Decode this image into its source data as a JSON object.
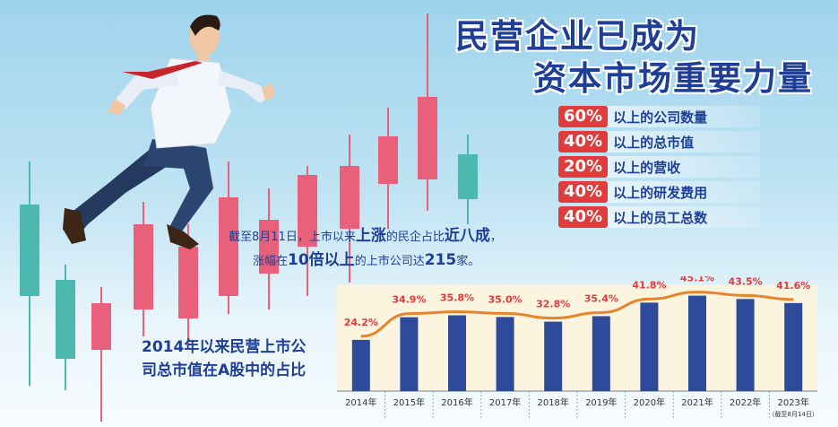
{
  "headline": {
    "line1": "民营企业已成为",
    "line2": "资本市场重要力量"
  },
  "stats": [
    {
      "percent": "60%",
      "label": "以上的公司数量"
    },
    {
      "percent": "40%",
      "label": "以上的总市值"
    },
    {
      "percent": "20%",
      "label": "以上的营收"
    },
    {
      "percent": "40%",
      "label": "以上的研发费用"
    },
    {
      "percent": "40%",
      "label": "以上的员工总数"
    }
  ],
  "note": {
    "p1a": "截至8月11日，上市以来",
    "p1b": "上涨",
    "p1c": "的民企占比",
    "p1d": "近八成",
    "p1e": "，",
    "p2a": "涨幅在",
    "p2b": "10倍以上",
    "p2c": "的上市公司达",
    "p2d": "215",
    "p2e": "家。"
  },
  "colors": {
    "bar": "#2e4a9a",
    "line": "#e8842b",
    "label": "#e23b3b",
    "candle_red": "#e9607a",
    "candle_teal": "#4cb8b0"
  },
  "chart_data": {
    "type": "bar",
    "caption_line1": "2014年以来民营上市公",
    "caption_line2": "司总市值在A股中的占比",
    "categories": [
      "2014年",
      "2015年",
      "2016年",
      "2017年",
      "2018年",
      "2019年",
      "2020年",
      "2021年",
      "2022年",
      "2023年"
    ],
    "category_note": "（截至8月14日）",
    "values": [
      24.2,
      34.9,
      35.8,
      35.0,
      32.8,
      35.4,
      41.8,
      45.1,
      43.5,
      41.6
    ],
    "value_labels": [
      "24.2%",
      "34.9%",
      "35.8%",
      "35.0%",
      "32.8%",
      "35.4%",
      "41.8%",
      "45.1%",
      "43.5%",
      "41.6%"
    ],
    "overlay": "line"
  }
}
